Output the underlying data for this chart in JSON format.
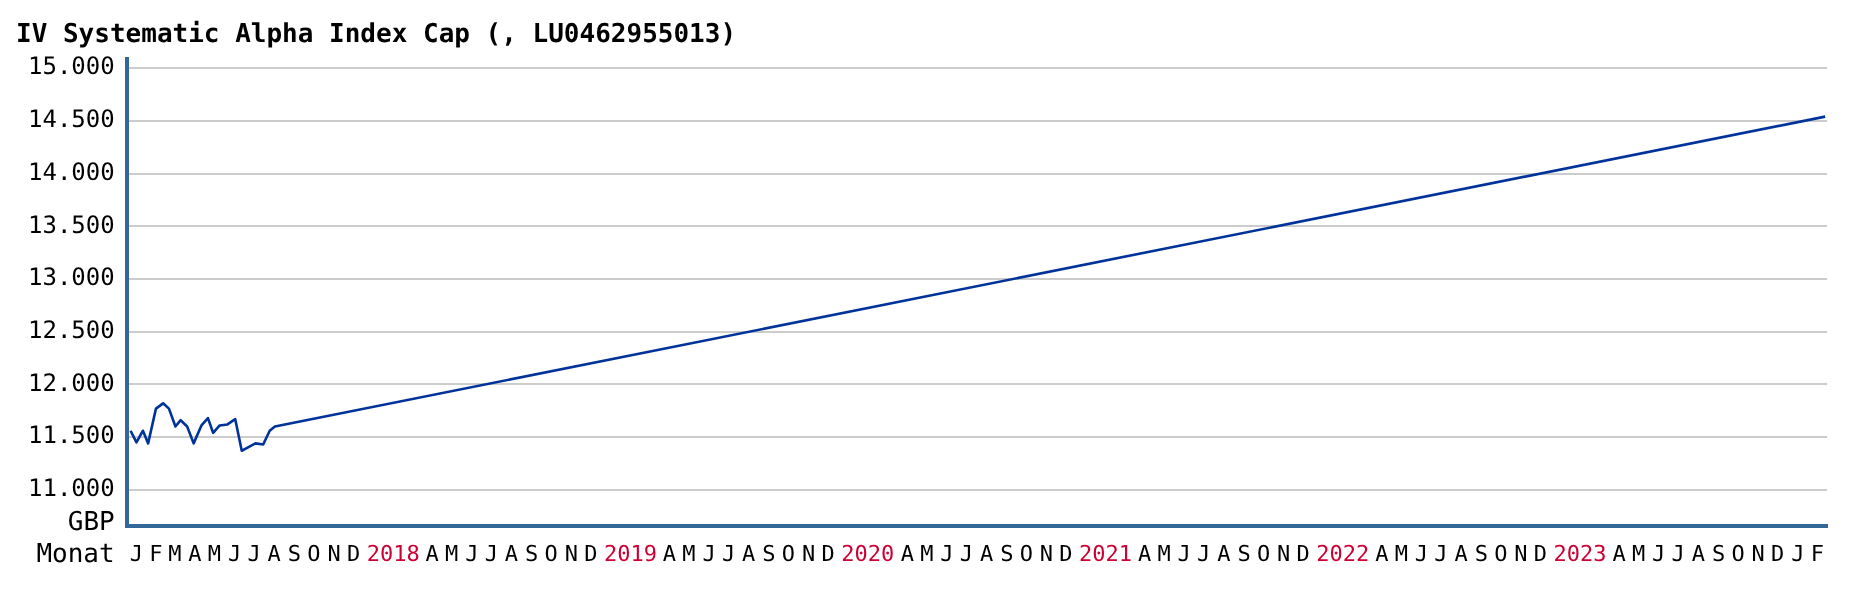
{
  "chart_data": {
    "type": "line",
    "title": "IV Systematic Alpha Index Cap (, LU0462955013)",
    "xlabel": "Monat",
    "ylabel": "GBP",
    "x": [
      "2017-01-07",
      "2017-01-16",
      "2017-01-26",
      "2017-02-03",
      "2017-02-15",
      "2017-02-26",
      "2017-03-07",
      "2017-03-17",
      "2017-03-25",
      "2017-04-04",
      "2017-04-14",
      "2017-04-26",
      "2017-05-06",
      "2017-05-14",
      "2017-05-24",
      "2017-06-05",
      "2017-06-17",
      "2017-06-27",
      "2017-07-06",
      "2017-07-18",
      "2017-07-30",
      "2017-08-09",
      "2017-08-17",
      "2024-02-27"
    ],
    "series": [
      {
        "color": "#003399",
        "values": [
          11560,
          11450,
          11560,
          11440,
          11770,
          11820,
          11770,
          11600,
          11660,
          11600,
          11440,
          11610,
          11680,
          11540,
          11610,
          11620,
          11670,
          11370,
          11400,
          11440,
          11430,
          11560,
          11600,
          14540
        ]
      }
    ],
    "xlim": [
      "2017-01-01",
      "2024-03-01"
    ],
    "xticks": [
      {
        "value": "2017-01-16",
        "label": "J"
      },
      {
        "value": "2017-02-15",
        "label": "F"
      },
      {
        "value": "2017-03-16",
        "label": "M"
      },
      {
        "value": "2017-04-16",
        "label": "A"
      },
      {
        "value": "2017-05-16",
        "label": "M"
      },
      {
        "value": "2017-06-16",
        "label": "J"
      },
      {
        "value": "2017-07-16",
        "label": "J"
      },
      {
        "value": "2017-08-16",
        "label": "A"
      },
      {
        "value": "2017-09-16",
        "label": "S"
      },
      {
        "value": "2017-10-16",
        "label": "O"
      },
      {
        "value": "2017-11-16",
        "label": "N"
      },
      {
        "value": "2017-12-16",
        "label": "D"
      },
      {
        "value": "2018-02-15",
        "label": "2018"
      },
      {
        "value": "2018-04-16",
        "label": "A"
      },
      {
        "value": "2018-05-16",
        "label": "M"
      },
      {
        "value": "2018-06-16",
        "label": "J"
      },
      {
        "value": "2018-07-16",
        "label": "J"
      },
      {
        "value": "2018-08-16",
        "label": "A"
      },
      {
        "value": "2018-09-16",
        "label": "S"
      },
      {
        "value": "2018-10-16",
        "label": "O"
      },
      {
        "value": "2018-11-16",
        "label": "N"
      },
      {
        "value": "2018-12-16",
        "label": "D"
      },
      {
        "value": "2019-02-15",
        "label": "2019"
      },
      {
        "value": "2019-04-16",
        "label": "A"
      },
      {
        "value": "2019-05-16",
        "label": "M"
      },
      {
        "value": "2019-06-16",
        "label": "J"
      },
      {
        "value": "2019-07-16",
        "label": "J"
      },
      {
        "value": "2019-08-16",
        "label": "A"
      },
      {
        "value": "2019-09-16",
        "label": "S"
      },
      {
        "value": "2019-10-16",
        "label": "O"
      },
      {
        "value": "2019-11-16",
        "label": "N"
      },
      {
        "value": "2019-12-16",
        "label": "D"
      },
      {
        "value": "2020-02-15",
        "label": "2020"
      },
      {
        "value": "2020-04-16",
        "label": "A"
      },
      {
        "value": "2020-05-16",
        "label": "M"
      },
      {
        "value": "2020-06-16",
        "label": "J"
      },
      {
        "value": "2020-07-16",
        "label": "J"
      },
      {
        "value": "2020-08-16",
        "label": "A"
      },
      {
        "value": "2020-09-16",
        "label": "S"
      },
      {
        "value": "2020-10-16",
        "label": "O"
      },
      {
        "value": "2020-11-16",
        "label": "N"
      },
      {
        "value": "2020-12-16",
        "label": "D"
      },
      {
        "value": "2021-02-15",
        "label": "2021"
      },
      {
        "value": "2021-04-16",
        "label": "A"
      },
      {
        "value": "2021-05-16",
        "label": "M"
      },
      {
        "value": "2021-06-16",
        "label": "J"
      },
      {
        "value": "2021-07-16",
        "label": "J"
      },
      {
        "value": "2021-08-16",
        "label": "A"
      },
      {
        "value": "2021-09-16",
        "label": "S"
      },
      {
        "value": "2021-10-16",
        "label": "O"
      },
      {
        "value": "2021-11-16",
        "label": "N"
      },
      {
        "value": "2021-12-16",
        "label": "D"
      },
      {
        "value": "2022-02-15",
        "label": "2022"
      },
      {
        "value": "2022-04-16",
        "label": "A"
      },
      {
        "value": "2022-05-16",
        "label": "M"
      },
      {
        "value": "2022-06-16",
        "label": "J"
      },
      {
        "value": "2022-07-16",
        "label": "J"
      },
      {
        "value": "2022-08-16",
        "label": "A"
      },
      {
        "value": "2022-09-16",
        "label": "S"
      },
      {
        "value": "2022-10-16",
        "label": "O"
      },
      {
        "value": "2022-11-16",
        "label": "N"
      },
      {
        "value": "2022-12-16",
        "label": "D"
      },
      {
        "value": "2023-02-15",
        "label": "2023"
      },
      {
        "value": "2023-04-16",
        "label": "A"
      },
      {
        "value": "2023-05-16",
        "label": "M"
      },
      {
        "value": "2023-06-16",
        "label": "J"
      },
      {
        "value": "2023-07-16",
        "label": "J"
      },
      {
        "value": "2023-08-16",
        "label": "A"
      },
      {
        "value": "2023-09-16",
        "label": "S"
      },
      {
        "value": "2023-10-16",
        "label": "O"
      },
      {
        "value": "2023-11-16",
        "label": "N"
      },
      {
        "value": "2023-12-16",
        "label": "D"
      },
      {
        "value": "2024-01-16",
        "label": "J"
      },
      {
        "value": "2024-02-15",
        "label": "F"
      }
    ],
    "ylim": [
      10660,
      15085
    ],
    "yticks": [
      {
        "value": 11000,
        "label": "11.000"
      },
      {
        "value": 11500,
        "label": "11.500"
      },
      {
        "value": 12000,
        "label": "12.000"
      },
      {
        "value": 12500,
        "label": "12.500"
      },
      {
        "value": 13000,
        "label": "13.000"
      },
      {
        "value": 13500,
        "label": "13.500"
      },
      {
        "value": 14000,
        "label": "14.000"
      },
      {
        "value": 14500,
        "label": "14.500"
      },
      {
        "value": 15000,
        "label": "15.000"
      }
    ],
    "grid": "y",
    "line_style": "solid",
    "legend": false
  }
}
